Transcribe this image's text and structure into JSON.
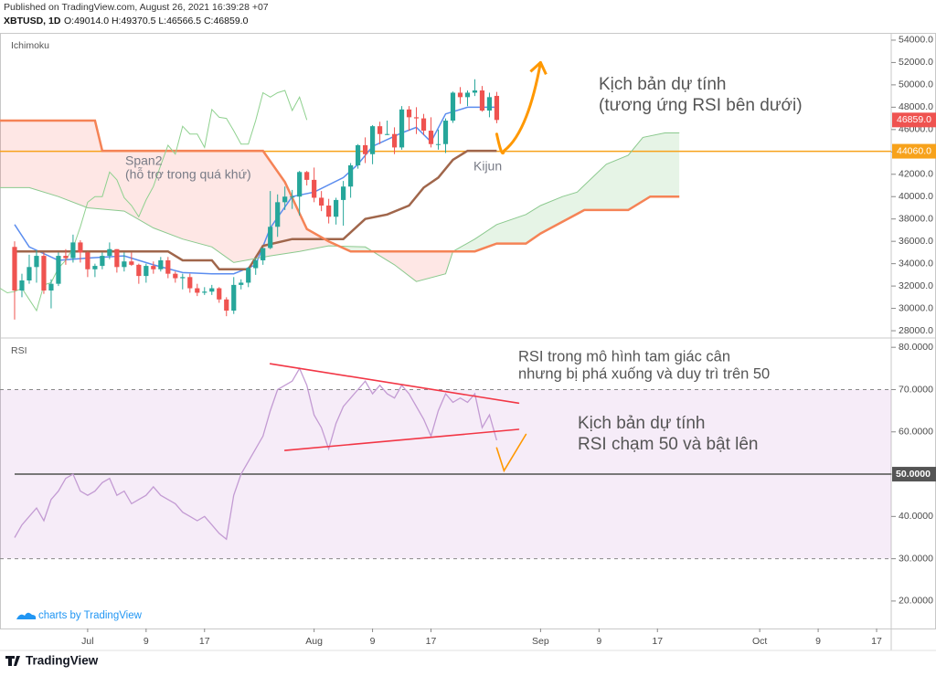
{
  "header": {
    "published": "Published on TradingView.com, August 26, 2021 16:39:28 +07",
    "symbol": "XBTUSD, 1D",
    "ohlc": "O:49014.0 H:49370.5 L:46566.5 C:46859.0"
  },
  "footer": {
    "credit": "charts by TradingView",
    "logo": "TradingView"
  },
  "chart_data": [
    {
      "type": "candlestick",
      "title": "Ichimoku",
      "up_color": "#26a69a",
      "down_color": "#ef5350",
      "x": [
        "2021-06-21",
        "2021-06-22",
        "2021-06-23",
        "2021-06-24",
        "2021-06-25",
        "2021-06-26",
        "2021-06-27",
        "2021-06-28",
        "2021-06-29",
        "2021-06-30",
        "2021-07-01",
        "2021-07-02",
        "2021-07-03",
        "2021-07-04",
        "2021-07-05",
        "2021-07-06",
        "2021-07-07",
        "2021-07-08",
        "2021-07-09",
        "2021-07-10",
        "2021-07-11",
        "2021-07-12",
        "2021-07-13",
        "2021-07-14",
        "2021-07-15",
        "2021-07-16",
        "2021-07-17",
        "2021-07-18",
        "2021-07-19",
        "2021-07-20",
        "2021-07-21",
        "2021-07-22",
        "2021-07-23",
        "2021-07-24",
        "2021-07-25",
        "2021-07-26",
        "2021-07-27",
        "2021-07-28",
        "2021-07-29",
        "2021-07-30",
        "2021-07-31",
        "2021-08-01",
        "2021-08-02",
        "2021-08-03",
        "2021-08-04",
        "2021-08-05",
        "2021-08-06",
        "2021-08-07",
        "2021-08-08",
        "2021-08-09",
        "2021-08-10",
        "2021-08-11",
        "2021-08-12",
        "2021-08-13",
        "2021-08-14",
        "2021-08-15",
        "2021-08-16",
        "2021-08-17",
        "2021-08-18",
        "2021-08-19",
        "2021-08-20",
        "2021-08-21",
        "2021-08-22",
        "2021-08-23",
        "2021-08-24",
        "2021-08-25",
        "2021-08-26"
      ],
      "open": [
        35500,
        31600,
        32500,
        33700,
        34700,
        31600,
        32200,
        34700,
        34500,
        35900,
        35000,
        33500,
        33800,
        34700,
        35300,
        33700,
        34200,
        33900,
        32900,
        33800,
        33500,
        34300,
        33100,
        32700,
        32800,
        31800,
        31400,
        31500,
        31800,
        30800,
        29800,
        32100,
        32300,
        33600,
        34300,
        35400,
        37300,
        39500,
        40000,
        40000,
        42200,
        41500,
        39900,
        39200,
        38200,
        39700,
        40900,
        42800,
        44600,
        43800,
        46300,
        45600,
        45600,
        44400,
        47800,
        47100,
        47000,
        45900,
        44700,
        44700,
        46800,
        49300,
        48900,
        49300,
        49500,
        47700,
        49014
      ],
      "high": [
        36000,
        33100,
        34800,
        35200,
        35000,
        32600,
        35000,
        35300,
        36600,
        36100,
        35100,
        34000,
        35000,
        35900,
        35300,
        35000,
        35000,
        34000,
        34000,
        34200,
        34600,
        34600,
        33300,
        33100,
        33100,
        32200,
        31900,
        32100,
        31900,
        31000,
        32800,
        32600,
        33700,
        34500,
        35400,
        40500,
        40200,
        40900,
        40600,
        42300,
        42300,
        42600,
        40500,
        39800,
        39900,
        41400,
        43000,
        44700,
        45300,
        46400,
        46700,
        46800,
        46200,
        48100,
        48100,
        48000,
        47400,
        47100,
        46000,
        47000,
        49400,
        49800,
        49500,
        50500,
        49900,
        49300,
        49370.5
      ],
      "low": [
        29000,
        31000,
        32200,
        32300,
        31300,
        30000,
        32000,
        33900,
        34100,
        34100,
        32800,
        32800,
        33500,
        34400,
        33200,
        33300,
        33800,
        32200,
        32300,
        33100,
        33300,
        32700,
        32300,
        31700,
        31400,
        31100,
        31200,
        31200,
        30500,
        29300,
        29500,
        31700,
        31900,
        33000,
        33900,
        35300,
        36400,
        38800,
        38900,
        38300,
        41000,
        39500,
        38700,
        37600,
        37500,
        37400,
        39900,
        42500,
        43000,
        42900,
        44700,
        45500,
        43800,
        44200,
        45900,
        45600,
        45500,
        44400,
        44200,
        43900,
        46600,
        48300,
        48100,
        49000,
        47600,
        47100,
        46566.5
      ],
      "close": [
        31600,
        32500,
        33700,
        34700,
        31600,
        32200,
        34700,
        34500,
        35900,
        35000,
        33500,
        33800,
        34700,
        35300,
        33700,
        34200,
        33900,
        32900,
        33800,
        33500,
        34300,
        33100,
        32700,
        32800,
        31800,
        31400,
        31500,
        31800,
        30800,
        29800,
        32100,
        32300,
        33600,
        34300,
        35400,
        37300,
        39500,
        40000,
        40000,
        42200,
        41500,
        39900,
        39200,
        38200,
        39700,
        40900,
        42800,
        44600,
        43800,
        46300,
        45600,
        45600,
        44400,
        47800,
        47100,
        47000,
        45900,
        44700,
        44700,
        46800,
        49300,
        48900,
        49300,
        49500,
        47700,
        48900,
        46859
      ],
      "lines": [
        {
          "color": "#5b8def",
          "x": [
            "2021-06-21",
            "2021-06-23",
            "2021-06-27",
            "2021-07-01",
            "2021-07-06",
            "2021-07-10",
            "2021-07-14",
            "2021-07-18",
            "2021-07-21",
            "2021-07-24",
            "2021-07-26",
            "2021-07-29",
            "2021-08-01",
            "2021-08-05",
            "2021-08-07",
            "2021-08-09",
            "2021-08-13",
            "2021-08-15",
            "2021-08-17",
            "2021-08-19",
            "2021-08-22",
            "2021-08-26"
          ],
          "values": [
            37500,
            35500,
            34300,
            34500,
            34700,
            33900,
            33200,
            33100,
            33100,
            33900,
            37200,
            40000,
            40400,
            41700,
            42900,
            44500,
            45700,
            46200,
            44900,
            47400,
            48000,
            48000
          ]
        },
        {
          "color": "#a0664b",
          "x": [
            "2021-06-21",
            "2021-07-12",
            "2021-07-14",
            "2021-07-18",
            "2021-07-19",
            "2021-07-23",
            "2021-07-25",
            "2021-07-29",
            "2021-08-05",
            "2021-08-08",
            "2021-08-11",
            "2021-08-14",
            "2021-08-16",
            "2021-08-18",
            "2021-08-20",
            "2021-08-22",
            "2021-08-26"
          ],
          "values": [
            35100,
            35100,
            34300,
            34300,
            33500,
            33500,
            35600,
            36200,
            36200,
            38000,
            38400,
            39200,
            40800,
            41700,
            43300,
            44100,
            44100
          ]
        },
        {
          "color": "#8bc98e",
          "x": [
            "2021-06-19",
            "2021-06-23",
            "2021-06-27",
            "2021-07-01",
            "2021-07-06",
            "2021-07-10",
            "2021-07-14",
            "2021-07-18",
            "2021-07-21",
            "2021-07-26",
            "2021-07-30",
            "2021-08-03",
            "2021-08-08",
            "2021-08-12",
            "2021-08-15",
            "2021-08-19",
            "2021-08-20",
            "2021-08-23",
            "2021-08-26",
            "2021-08-30",
            "2021-09-01",
            "2021-09-04",
            "2021-09-06",
            "2021-09-10",
            "2021-09-13",
            "2021-09-15",
            "2021-09-18",
            "2021-09-20"
          ],
          "values": [
            40800,
            40800,
            40000,
            39000,
            38700,
            37200,
            36200,
            35500,
            34100,
            34700,
            35100,
            35600,
            35500,
            33900,
            32400,
            33100,
            35100,
            36200,
            37500,
            38400,
            39200,
            40000,
            40400,
            42900,
            43700,
            45300,
            45700,
            45700
          ]
        },
        {
          "color": "#f58356",
          "x": [
            "2021-06-19",
            "2021-07-02",
            "2021-07-03",
            "2021-07-25",
            "2021-07-28",
            "2021-07-30",
            "2021-07-31",
            "2021-08-03",
            "2021-08-06",
            "2021-08-23",
            "2021-08-26",
            "2021-08-30",
            "2021-09-01",
            "2021-09-07",
            "2021-09-13",
            "2021-09-16",
            "2021-09-20"
          ],
          "values": [
            46800,
            46800,
            44100,
            44100,
            41300,
            38500,
            37100,
            36000,
            35100,
            35100,
            35800,
            35800,
            36700,
            38800,
            38800,
            40000,
            40000
          ]
        },
        {
          "color": "#8fd18f",
          "x": [
            "2021-06-19",
            "2021-06-20",
            "2021-06-21",
            "2021-06-22",
            "2021-06-23",
            "2021-06-24",
            "2021-06-25",
            "2021-06-26",
            "2021-06-27",
            "2021-06-28",
            "2021-06-29",
            "2021-06-30",
            "2021-07-01",
            "2021-07-02",
            "2021-07-03",
            "2021-07-04",
            "2021-07-05",
            "2021-07-06",
            "2021-07-07",
            "2021-07-08",
            "2021-07-09",
            "2021-07-10",
            "2021-07-11",
            "2021-07-12",
            "2021-07-13",
            "2021-07-14",
            "2021-07-15",
            "2021-07-16",
            "2021-07-17",
            "2021-07-18",
            "2021-07-19",
            "2021-07-20",
            "2021-07-21",
            "2021-07-22",
            "2021-07-23",
            "2021-07-24",
            "2021-07-25",
            "2021-07-26",
            "2021-07-27",
            "2021-07-28",
            "2021-07-29",
            "2021-07-30",
            "2021-07-31"
          ],
          "values": [
            31800,
            31400,
            31500,
            31800,
            30800,
            29800,
            32100,
            32300,
            33600,
            34300,
            35400,
            37300,
            39500,
            40000,
            40000,
            42200,
            41500,
            39900,
            39200,
            38200,
            39700,
            40900,
            42800,
            44600,
            43800,
            46300,
            45600,
            45600,
            44400,
            47800,
            47100,
            47000,
            45900,
            44700,
            44700,
            46800,
            49300,
            48900,
            49300,
            49500,
            47700,
            48900,
            46859
          ]
        }
      ],
      "cloud_colors": [
        "rgba(76,175,80,0.14)",
        "rgba(244,67,54,0.13)"
      ],
      "hline": {
        "value": 44060,
        "label": "44060.0",
        "color": "#f7a21b"
      },
      "last_price": {
        "value": 46859,
        "label": "46859.0"
      },
      "drawings": [
        {
          "color": "#ff9800",
          "x": [
            "2021-08-26",
            "2021-08-27",
            "2021-09-01"
          ],
          "values": [
            45600,
            44100,
            52000
          ]
        }
      ],
      "annotations": [
        "Span2",
        "(hỗ trợ trong quá khứ)",
        "Kijun",
        "Kịch bản dự tính",
        "(tương ứng RSI bên dưới)"
      ],
      "xlim": [
        "2021-06-19",
        "2021-10-19"
      ],
      "ylim": [
        27350,
        54650
      ],
      "yticks": [
        {
          "value": 28000,
          "label": "28000.0"
        },
        {
          "value": 30000,
          "label": "30000.0"
        },
        {
          "value": 32000,
          "label": "32000.0"
        },
        {
          "value": 34000,
          "label": "34000.0"
        },
        {
          "value": 36000,
          "label": "36000.0"
        },
        {
          "value": 38000,
          "label": "38000.0"
        },
        {
          "value": 40000,
          "label": "40000.0"
        },
        {
          "value": 42000,
          "label": "42000.0"
        },
        {
          "value": 44000,
          "label": "44000.0"
        },
        {
          "value": 46000,
          "label": "46000.0"
        },
        {
          "value": 48000,
          "label": "48000.0"
        },
        {
          "value": 50000,
          "label": "50000.0"
        },
        {
          "value": 52000,
          "label": "52000.0"
        },
        {
          "value": 54000,
          "label": "54000.0"
        }
      ]
    },
    {
      "type": "line",
      "title": "RSI",
      "color": "#c39bd3",
      "x": [
        "2021-06-21",
        "2021-06-22",
        "2021-06-23",
        "2021-06-24",
        "2021-06-25",
        "2021-06-26",
        "2021-06-27",
        "2021-06-28",
        "2021-06-29",
        "2021-06-30",
        "2021-07-01",
        "2021-07-02",
        "2021-07-03",
        "2021-07-04",
        "2021-07-05",
        "2021-07-06",
        "2021-07-07",
        "2021-07-08",
        "2021-07-09",
        "2021-07-10",
        "2021-07-11",
        "2021-07-12",
        "2021-07-13",
        "2021-07-14",
        "2021-07-15",
        "2021-07-16",
        "2021-07-17",
        "2021-07-18",
        "2021-07-19",
        "2021-07-20",
        "2021-07-21",
        "2021-07-22",
        "2021-07-23",
        "2021-07-24",
        "2021-07-25",
        "2021-07-26",
        "2021-07-27",
        "2021-07-28",
        "2021-07-29",
        "2021-07-30",
        "2021-07-31",
        "2021-08-01",
        "2021-08-02",
        "2021-08-03",
        "2021-08-04",
        "2021-08-05",
        "2021-08-06",
        "2021-08-07",
        "2021-08-08",
        "2021-08-09",
        "2021-08-10",
        "2021-08-11",
        "2021-08-12",
        "2021-08-13",
        "2021-08-14",
        "2021-08-15",
        "2021-08-16",
        "2021-08-17",
        "2021-08-18",
        "2021-08-19",
        "2021-08-20",
        "2021-08-21",
        "2021-08-22",
        "2021-08-23",
        "2021-08-24",
        "2021-08-25",
        "2021-08-26"
      ],
      "values": [
        35,
        38,
        40,
        42,
        39,
        44,
        46,
        49,
        50,
        46,
        45,
        46,
        48,
        49,
        45,
        46,
        43,
        44,
        45,
        47,
        45,
        44,
        43,
        41,
        40,
        39,
        40,
        38,
        36,
        34.6,
        45,
        50,
        53,
        56,
        59,
        65,
        70,
        71,
        72,
        75,
        71,
        64,
        61,
        56,
        62,
        66,
        68,
        70,
        72,
        69,
        71,
        69,
        68,
        71,
        69,
        66,
        63,
        59,
        65,
        69,
        67,
        68,
        67,
        69,
        61,
        64,
        58
      ],
      "band": [
        30,
        70
      ],
      "band_color": "rgba(156,39,176,0.09)",
      "midline": {
        "value": 50,
        "label": "50.0000"
      },
      "drawings": [
        {
          "color": "#f23645",
          "x": [
            "2021-07-26",
            "2021-08-29"
          ],
          "values": [
            76.1,
            66.8
          ]
        },
        {
          "color": "#f23645",
          "x": [
            "2021-07-28",
            "2021-08-29"
          ],
          "values": [
            55.6,
            60.6
          ]
        },
        {
          "color": "#ff9800",
          "x": [
            "2021-08-26",
            "2021-08-27",
            "2021-08-30"
          ],
          "values": [
            56.2,
            50.8,
            59.4
          ]
        }
      ],
      "annotations": [
        "RSI trong mô hình tam giác cân",
        "nhưng bị phá xuống và duy trì trên 50",
        "Kịch bản dự tính",
        "RSI chạm 50 và bật lên"
      ],
      "xlim": [
        "2021-06-19",
        "2021-10-19"
      ],
      "ylim": [
        13.5,
        82.2
      ],
      "yticks": [
        {
          "value": 20,
          "label": "20.0000"
        },
        {
          "value": 30,
          "label": "30.0000"
        },
        {
          "value": 40,
          "label": "40.0000"
        },
        {
          "value": 50,
          "label": "50.0000"
        },
        {
          "value": 60,
          "label": "60.0000"
        },
        {
          "value": 70,
          "label": "70.0000"
        },
        {
          "value": 80,
          "label": "80.0000"
        }
      ],
      "xticks": [
        {
          "value": "2021-07-01",
          "label": "Jul"
        },
        {
          "value": "2021-07-09",
          "label": "9"
        },
        {
          "value": "2021-07-17",
          "label": "17"
        },
        {
          "value": "2021-08-01",
          "label": "Aug"
        },
        {
          "value": "2021-08-09",
          "label": "9"
        },
        {
          "value": "2021-08-17",
          "label": "17"
        },
        {
          "value": "2021-09-01",
          "label": "Sep"
        },
        {
          "value": "2021-09-09",
          "label": "9"
        },
        {
          "value": "2021-09-17",
          "label": "17"
        },
        {
          "value": "2021-10-01",
          "label": "Oct"
        },
        {
          "value": "2021-10-09",
          "label": "9"
        },
        {
          "value": "2021-10-17",
          "label": "17"
        }
      ]
    }
  ]
}
